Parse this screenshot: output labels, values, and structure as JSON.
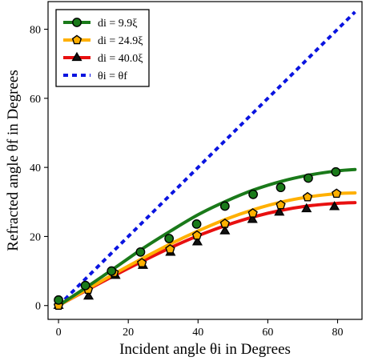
{
  "chart_data": {
    "type": "line",
    "title": "",
    "xlabel": "Incident angle θi in Degrees",
    "ylabel": "Refracted angle θf in Degrees",
    "xlim": [
      -3,
      87
    ],
    "ylim": [
      -4,
      88
    ],
    "xticks": [
      "0",
      "20",
      "40",
      "60",
      "80"
    ],
    "yticks": [
      "0",
      "20",
      "40",
      "60",
      "80"
    ],
    "grid": false,
    "legend_position": "top-left",
    "series": [
      {
        "name": "di = 9.9ξ",
        "color": "#1a7a1a",
        "marker": "circle",
        "marker_color": "#1a7a1a",
        "curve_x": [
          0,
          8,
          16,
          24,
          32,
          40,
          48,
          56,
          64,
          72,
          80,
          85
        ],
        "curve_y": [
          0,
          5.3,
          10.8,
          16.4,
          21.5,
          26.3,
          30.2,
          33.5,
          36.0,
          37.8,
          39.0,
          39.4
        ],
        "points_x": [
          0,
          7.7,
          15.2,
          23.5,
          31.7,
          39.6,
          47.7,
          55.8,
          63.7,
          71.6,
          79.5
        ],
        "points_y": [
          1.6,
          5.8,
          10.0,
          15.5,
          19.4,
          23.6,
          28.8,
          32.2,
          34.2,
          36.9,
          38.7
        ]
      },
      {
        "name": "di = 24.9ξ",
        "color": "#ffb000",
        "marker": "pentagon",
        "marker_color": "#ffb000",
        "curve_x": [
          0,
          8,
          16,
          24,
          32,
          40,
          48,
          56,
          64,
          72,
          80,
          85
        ],
        "curve_y": [
          0,
          4.6,
          9.2,
          13.6,
          17.8,
          21.6,
          25.0,
          27.8,
          30.0,
          31.5,
          32.4,
          32.6
        ],
        "points_x": [
          0,
          8.5,
          15.9,
          23.9,
          32.0,
          39.7,
          47.7,
          55.7,
          63.7,
          71.4,
          79.7
        ],
        "points_y": [
          0,
          4.6,
          9.5,
          12.3,
          16.3,
          20.3,
          23.7,
          26.7,
          29.1,
          31.4,
          32.4
        ]
      },
      {
        "name": "di = 40.0ξ",
        "color": "#e81010",
        "marker": "triangle",
        "marker_color": "#111111",
        "curve_x": [
          0,
          8,
          16,
          24,
          32,
          40,
          48,
          56,
          64,
          72,
          80,
          85
        ],
        "curve_y": [
          0,
          4.4,
          8.7,
          12.8,
          16.7,
          20.2,
          23.2,
          25.7,
          27.6,
          28.9,
          29.6,
          29.8
        ],
        "points_x": [
          0,
          8.6,
          16.3,
          24.2,
          32.1,
          39.8,
          47.7,
          55.6,
          63.3,
          71.1,
          79.1
        ],
        "points_y": [
          0,
          2.7,
          8.7,
          11.6,
          15.4,
          18.4,
          21.6,
          24.9,
          27.0,
          28.0,
          28.6
        ]
      },
      {
        "name": "θi = θf",
        "color": "#0a14e0",
        "style": "dotted",
        "curve_x": [
          0,
          85
        ],
        "curve_y": [
          0,
          85
        ]
      }
    ]
  }
}
